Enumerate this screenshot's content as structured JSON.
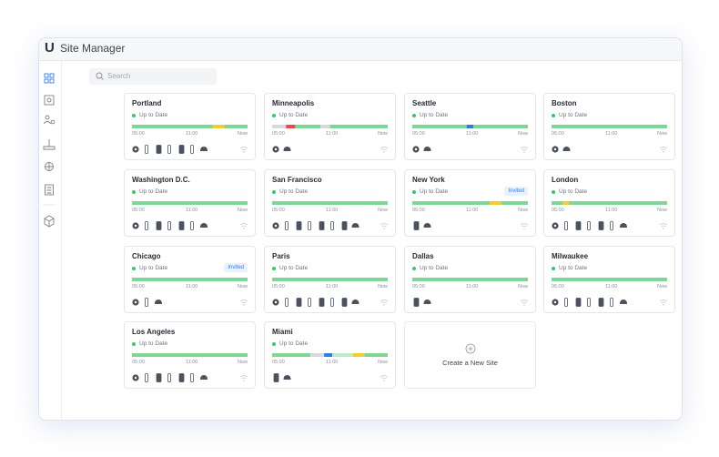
{
  "app": {
    "logo": "U",
    "title": "Site Manager"
  },
  "search": {
    "placeholder": "Search"
  },
  "sites": [
    {
      "name": "Portland",
      "status": "Up to Date"
    },
    {
      "name": "Minneapolis",
      "status": "Up to Date"
    },
    {
      "name": "Seattle",
      "status": "Up to Date"
    },
    {
      "name": "Boston",
      "status": "Up to Date"
    },
    {
      "name": "Washington D.C.",
      "status": "Up to Date"
    },
    {
      "name": "San Francisco",
      "status": "Up to Date"
    },
    {
      "name": "New York",
      "status": "Up to Date",
      "badge": "Invited"
    },
    {
      "name": "London",
      "status": "Up to Date"
    },
    {
      "name": "Chicago",
      "status": "Up to Date",
      "badge": "Invited"
    },
    {
      "name": "Paris",
      "status": "Up to Date"
    },
    {
      "name": "Dallas",
      "status": "Up to Date"
    },
    {
      "name": "Milwaukee",
      "status": "Up to Date"
    },
    {
      "name": "Los Angeles",
      "status": "Up to Date"
    },
    {
      "name": "Miami",
      "status": "Up to Date"
    }
  ],
  "timeline": [
    "05:00",
    "11:00",
    "Now"
  ],
  "create_site": "Create a New Site"
}
